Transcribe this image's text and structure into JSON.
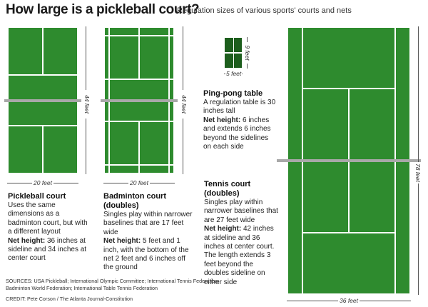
{
  "header": {
    "title": "How large is a pickleball court?",
    "subtitle": "Regulation sizes of various sports' courts and nets"
  },
  "colors": {
    "court_green": "#2e8b2e",
    "court_lines": "#ffffff",
    "net": "#a8a8a8",
    "table_green": "#1d5e1d"
  },
  "courts": {
    "pickleball": {
      "width_label": "20 feet",
      "length_label": "44 feet",
      "title": "Pickleball court",
      "body": "Uses the same dimensions as a badminton court, but with a different layout",
      "net_label": "Net height:",
      "net_text": "36 inches at sideline and 34 inches at center court"
    },
    "badminton": {
      "width_label": "20 feet",
      "length_label": "44 feet",
      "title": "Badminton court (doubles)",
      "body": "Singles play within narrower baselines that are 17 feet wide",
      "net_label": "Net height:",
      "net_text": "5 feet and 1 inch, with the bottom of the net 2 feet and 6 inches off the ground"
    },
    "pingpong": {
      "width_label": "5 feet",
      "length_label": "9 feet",
      "title": "Ping-pong table",
      "body": "A regulation table is 30 inches tall",
      "net_label": "Net height:",
      "net_text": "6 inches and extends 6 inches beyond the sidelines on each side"
    },
    "tennis": {
      "width_label": "36 feet",
      "length_label": "78 feet",
      "title": "Tennis court (doubles)",
      "body": "Singles play within narrower baselines that are 27 feet wide",
      "net_label": "Net height:",
      "net_text": "42 inches at sideline and 36 inches at center court. The length extends 3 feet beyond the doubles sideline on either side"
    }
  },
  "footer": {
    "sources": "SOURCES: USA Pickleball; International Olympic Committee; International Tennis Federation; Badminton World Federation; International Table Tennis Federation",
    "credit": "CREDIT: Pete Corson / The Atlanta Journal-Constitution"
  }
}
